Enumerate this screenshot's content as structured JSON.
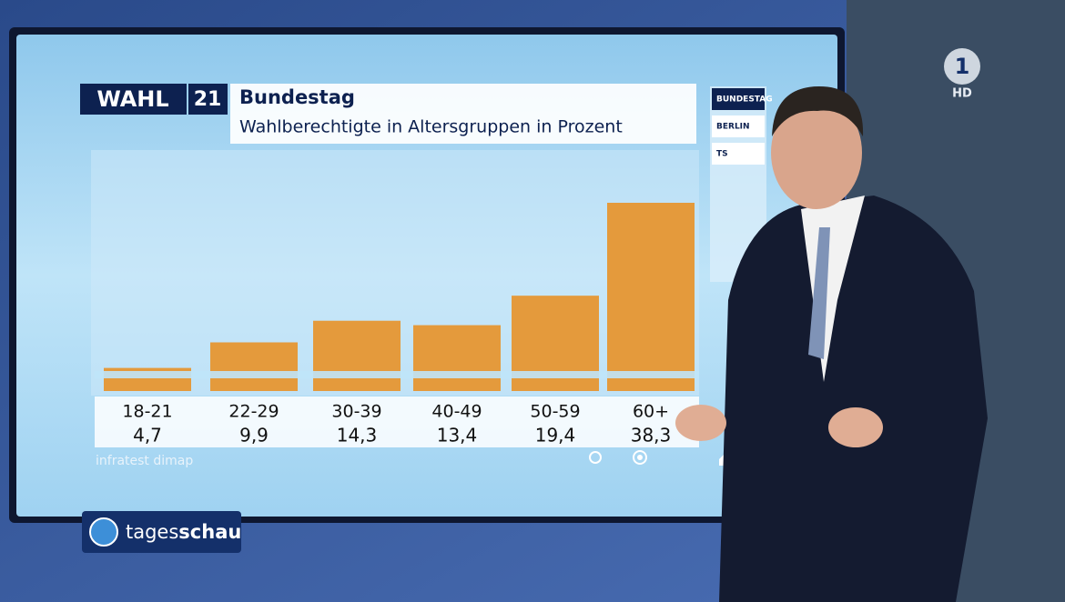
{
  "chart_data": {
    "type": "bar",
    "title": "Bundestag",
    "subtitle": "Wahlberechtigte in Altersgruppen in Prozent",
    "categories": [
      "18-21",
      "22-29",
      "30-39",
      "40-49",
      "50-59",
      "60+"
    ],
    "values": [
      4.7,
      9.9,
      14.3,
      13.4,
      19.4,
      38.3
    ],
    "value_labels": [
      "4,7",
      "9,9",
      "14,3",
      "13,4",
      "19,4",
      "38,3"
    ],
    "color": "#e49a3c",
    "source": "infratest dimap"
  },
  "branding": {
    "wahl": "WAHL",
    "year": "21",
    "channel_light": "tages",
    "channel_bold": "schau",
    "ard": "1",
    "hd": "HD"
  },
  "side_panel": {
    "items": [
      "BUNDESTAG",
      "BERLIN",
      "TS"
    ]
  }
}
